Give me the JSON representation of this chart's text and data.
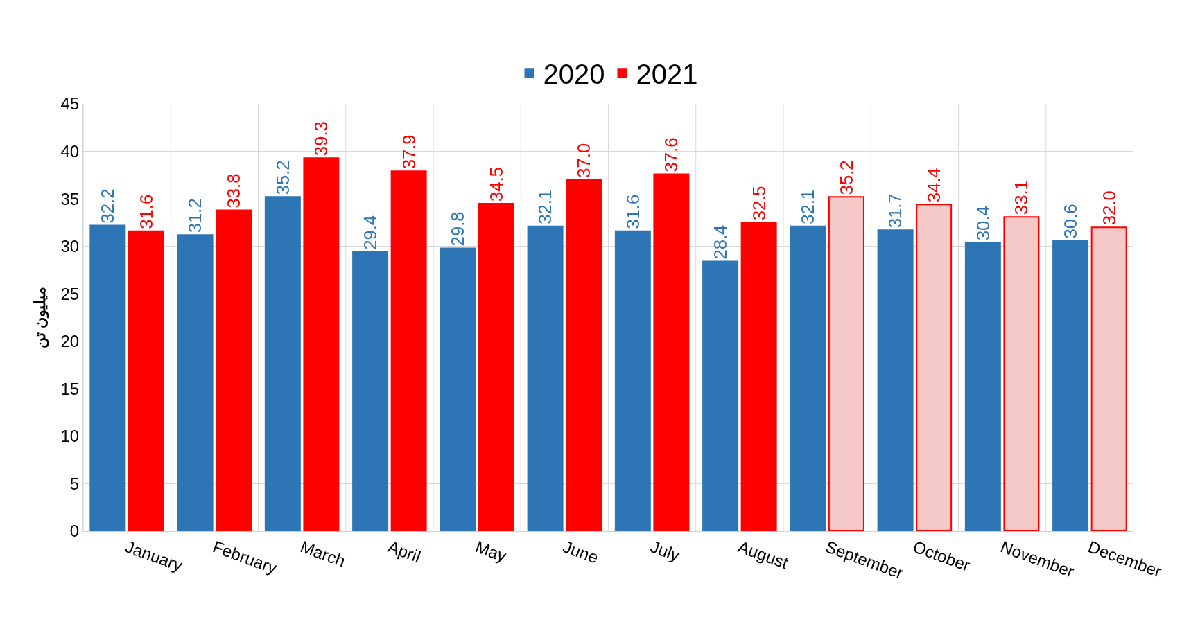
{
  "chart_data": {
    "type": "bar",
    "ylabel": "میلیون تن",
    "categories": [
      "January",
      "February",
      "March",
      "April",
      "May",
      "June",
      "July",
      "August",
      "September",
      "October",
      "November",
      "December"
    ],
    "series": [
      {
        "name": "2020",
        "color": "#2e75b6",
        "values": [
          32.2,
          31.2,
          35.2,
          29.4,
          29.8,
          32.1,
          31.6,
          28.4,
          32.1,
          31.7,
          30.4,
          30.6
        ]
      },
      {
        "name": "2021",
        "color": "#ff0000",
        "colors": [
          "#ff0000",
          "#ff0000",
          "#ff0000",
          "#ff0000",
          "#ff0000",
          "#ff0000",
          "#ff0000",
          "#ff0000",
          "#f6c9c9",
          "#f6c9c9",
          "#f6c9c9",
          "#f6c9c9"
        ],
        "values": [
          31.6,
          33.8,
          39.3,
          37.9,
          34.5,
          37.0,
          37.6,
          32.5,
          35.2,
          34.4,
          33.1,
          32.0
        ],
        "value_labels": [
          "31.6",
          "33.8",
          "39.3",
          "37.9",
          "34.5",
          "37.0",
          "37.6",
          "32.5",
          "35.2",
          "34.4",
          "33.1",
          "32.0"
        ]
      }
    ],
    "ylim": [
      0,
      45
    ],
    "yticks": [
      0,
      5,
      10,
      15,
      20,
      25,
      30,
      35,
      40,
      45
    ],
    "grid": true,
    "legend": "top",
    "data_labels": true
  }
}
